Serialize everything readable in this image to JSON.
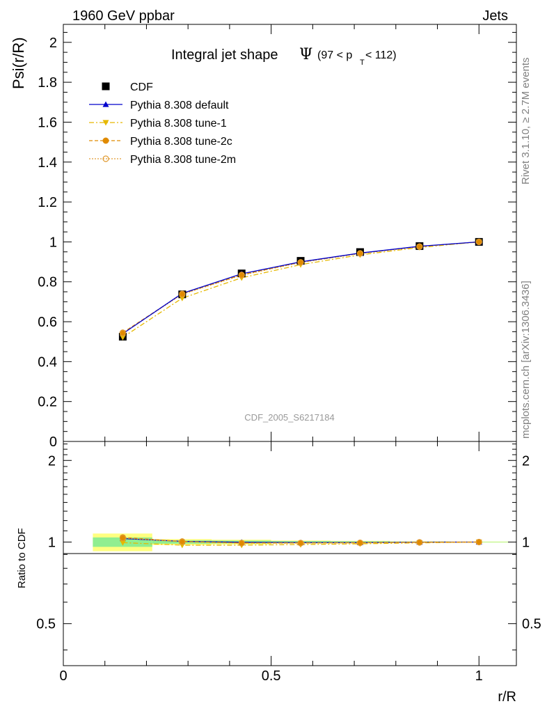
{
  "header": {
    "left": "1960 GeV ppbar",
    "right": "Jets"
  },
  "title": {
    "main": "Integral jet shape",
    "symbol": "Ψ",
    "cut_pre": "(97 < p",
    "cut_sub": "T",
    "cut_post": " < 112)"
  },
  "side_labels": {
    "rivet": "Rivet 3.1.10, ≥ 2.7M events",
    "mcplots": "mcplots.cern.ch [arXiv:1306.3436]"
  },
  "analysis_id": "CDF_2005_S6217184",
  "colors": {
    "data": "#000000",
    "default": "#0000cc",
    "tune1": "#e6b800",
    "tune2c": "#e08a00",
    "tune2m": "#e09a30",
    "band_inner": "#90ee90",
    "band_outer": "#ffff80"
  },
  "chart_data": [
    {
      "type": "line",
      "ylabel": "Psi(r/R)",
      "xlim": [
        0,
        1.09
      ],
      "ylim": [
        0,
        2.09
      ],
      "yticks": [
        0,
        0.2,
        0.4,
        0.6,
        0.8,
        1,
        1.2,
        1.4,
        1.6,
        1.8,
        2
      ],
      "yticklabels": [
        "0",
        "0.2",
        "0.4",
        "0.6",
        "0.8",
        "1",
        "1.2",
        "1.4",
        "1.6",
        "1.8",
        "2"
      ],
      "x": [
        0.143,
        0.286,
        0.429,
        0.571,
        0.714,
        0.857,
        1.0
      ],
      "legend_position": "top-left",
      "series": [
        {
          "name": "CDF",
          "marker": "square",
          "values": [
            0.525,
            0.737,
            0.842,
            0.905,
            0.949,
            0.979,
            1.0
          ]
        },
        {
          "name": "Pythia 8.308 default",
          "marker": "triangle-up",
          "values": [
            0.54,
            0.742,
            0.84,
            0.9,
            0.944,
            0.978,
            1.0
          ]
        },
        {
          "name": "Pythia 8.308 tune-1",
          "marker": "triangle-down",
          "values": [
            0.522,
            0.718,
            0.82,
            0.886,
            0.935,
            0.972,
            1.0
          ]
        },
        {
          "name": "Pythia 8.308 tune-2c",
          "marker": "circle",
          "values": [
            0.545,
            0.74,
            0.835,
            0.898,
            0.943,
            0.977,
            1.0
          ]
        },
        {
          "name": "Pythia 8.308 tune-2m",
          "marker": "circle-open",
          "values": [
            0.543,
            0.738,
            0.833,
            0.897,
            0.942,
            0.976,
            1.0
          ]
        }
      ]
    },
    {
      "type": "line",
      "ylabel": "Ratio to CDF",
      "xlabel": "r/R",
      "xlim": [
        0,
        1.09
      ],
      "ylim": [
        0.35,
        2.35
      ],
      "xticks": [
        0,
        0.5,
        1
      ],
      "xticklabels": [
        "0",
        "0.5",
        "1"
      ],
      "yticks": [
        0.5,
        1,
        2
      ],
      "yticklabels": [
        "0.5",
        "1",
        "2"
      ],
      "x": [
        0.143,
        0.286,
        0.429,
        0.571,
        0.714,
        0.857,
        1.0
      ],
      "band_xedges": [
        0.071,
        0.214,
        0.357,
        0.5,
        0.643,
        0.786,
        0.929,
        1.071
      ],
      "band_inner_halfwidth": [
        0.04,
        0.014,
        0.012,
        0.008,
        0.006,
        0.004,
        0.002
      ],
      "band_outer_halfwidth": [
        0.075,
        0.025,
        0.02,
        0.013,
        0.01,
        0.006,
        0.004
      ],
      "series": [
        {
          "name": "Pythia 8.308 default",
          "values": [
            1.03,
            1.006,
            0.998,
            0.995,
            0.995,
            0.999,
            1.0
          ]
        },
        {
          "name": "Pythia 8.308 tune-1",
          "values": [
            0.995,
            0.974,
            0.974,
            0.979,
            0.985,
            0.993,
            1.0
          ]
        },
        {
          "name": "Pythia 8.308 tune-2c",
          "values": [
            1.04,
            1.005,
            0.992,
            0.992,
            0.994,
            0.998,
            1.0
          ]
        },
        {
          "name": "Pythia 8.308 tune-2m",
          "values": [
            1.035,
            1.002,
            0.99,
            0.991,
            0.993,
            0.997,
            1.0
          ]
        }
      ]
    }
  ]
}
